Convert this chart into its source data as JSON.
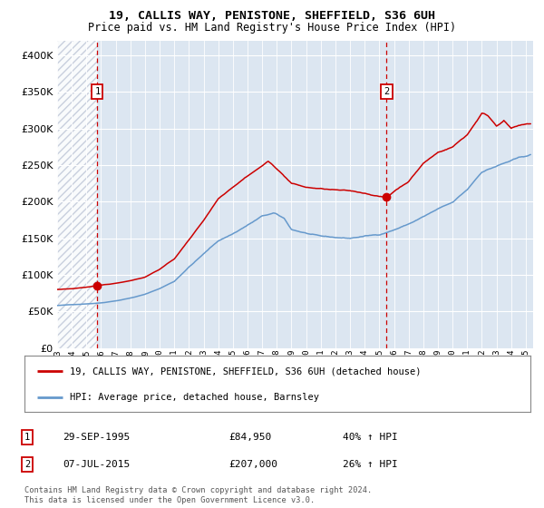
{
  "title1": "19, CALLIS WAY, PENISTONE, SHEFFIELD, S36 6UH",
  "title2": "Price paid vs. HM Land Registry's House Price Index (HPI)",
  "legend_line1": "19, CALLIS WAY, PENISTONE, SHEFFIELD, S36 6UH (detached house)",
  "legend_line2": "HPI: Average price, detached house, Barnsley",
  "annotation1_date": "29-SEP-1995",
  "annotation1_price": "£84,950",
  "annotation1_hpi": "40% ↑ HPI",
  "annotation2_date": "07-JUL-2015",
  "annotation2_price": "£207,000",
  "annotation2_hpi": "26% ↑ HPI",
  "purchase1_year": 1995.75,
  "purchase1_value": 84950,
  "purchase2_year": 2015.5,
  "purchase2_value": 207000,
  "hpi_color": "#6699cc",
  "price_color": "#cc0000",
  "bg_color": "#dce6f1",
  "hatch_color": "#c0c8d8",
  "footer": "Contains HM Land Registry data © Crown copyright and database right 2024.\nThis data is licensed under the Open Government Licence v3.0.",
  "ylim": [
    0,
    420000
  ],
  "xlim_start": 1993.0,
  "xlim_end": 2025.5,
  "hpi_waypoints": [
    [
      1993.0,
      58000
    ],
    [
      1994.0,
      59000
    ],
    [
      1995.0,
      60500
    ],
    [
      1996.0,
      62000
    ],
    [
      1997.0,
      65000
    ],
    [
      1998.0,
      69000
    ],
    [
      1999.0,
      74000
    ],
    [
      2000.0,
      82000
    ],
    [
      2001.0,
      92000
    ],
    [
      2002.0,
      112000
    ],
    [
      2003.0,
      130000
    ],
    [
      2004.0,
      148000
    ],
    [
      2005.0,
      158000
    ],
    [
      2006.0,
      170000
    ],
    [
      2007.0,
      182000
    ],
    [
      2007.8,
      186000
    ],
    [
      2008.5,
      178000
    ],
    [
      2009.0,
      163000
    ],
    [
      2010.0,
      158000
    ],
    [
      2011.0,
      153000
    ],
    [
      2012.0,
      151000
    ],
    [
      2013.0,
      150000
    ],
    [
      2014.0,
      153000
    ],
    [
      2015.0,
      155000
    ],
    [
      2016.0,
      162000
    ],
    [
      2017.0,
      170000
    ],
    [
      2018.0,
      180000
    ],
    [
      2019.0,
      190000
    ],
    [
      2020.0,
      198000
    ],
    [
      2021.0,
      215000
    ],
    [
      2022.0,
      240000
    ],
    [
      2023.0,
      248000
    ],
    [
      2024.0,
      255000
    ],
    [
      2025.3,
      262000
    ]
  ],
  "price_waypoints": [
    [
      1993.0,
      80000
    ],
    [
      1994.0,
      81000
    ],
    [
      1995.75,
      84950
    ],
    [
      1997.0,
      88000
    ],
    [
      1998.0,
      92000
    ],
    [
      1999.0,
      97000
    ],
    [
      2000.0,
      108000
    ],
    [
      2001.0,
      122000
    ],
    [
      2002.0,
      148000
    ],
    [
      2003.0,
      175000
    ],
    [
      2004.0,
      205000
    ],
    [
      2005.0,
      222000
    ],
    [
      2006.0,
      238000
    ],
    [
      2007.0,
      252000
    ],
    [
      2007.4,
      258000
    ],
    [
      2008.0,
      248000
    ],
    [
      2009.0,
      228000
    ],
    [
      2010.0,
      222000
    ],
    [
      2011.0,
      220000
    ],
    [
      2012.0,
      218000
    ],
    [
      2013.0,
      216000
    ],
    [
      2014.0,
      213000
    ],
    [
      2015.5,
      207000
    ],
    [
      2016.0,
      216000
    ],
    [
      2017.0,
      230000
    ],
    [
      2018.0,
      255000
    ],
    [
      2019.0,
      270000
    ],
    [
      2020.0,
      278000
    ],
    [
      2021.0,
      295000
    ],
    [
      2022.0,
      325000
    ],
    [
      2022.4,
      322000
    ],
    [
      2023.0,
      308000
    ],
    [
      2023.5,
      316000
    ],
    [
      2024.0,
      305000
    ],
    [
      2024.5,
      308000
    ],
    [
      2025.3,
      310000
    ]
  ]
}
